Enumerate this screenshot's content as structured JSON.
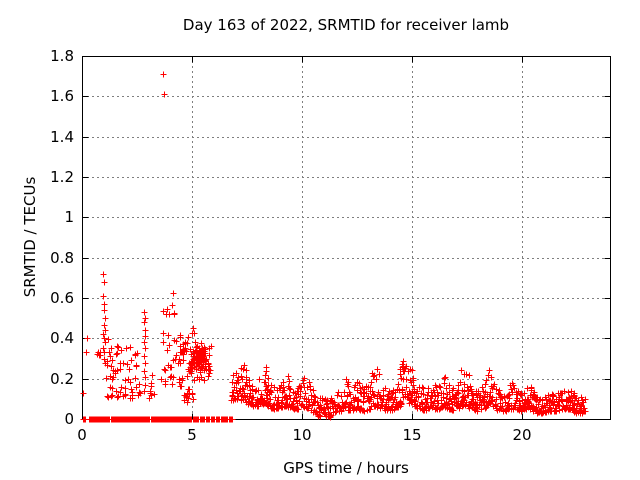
{
  "chart_data": {
    "type": "scatter",
    "title": "Day 163 of 2022, SRMTID for receiver lamb",
    "xlabel": "GPS time / hours",
    "ylabel": "SRMTID / TECUs",
    "xlim": [
      0,
      24
    ],
    "ylim": [
      0,
      1.8
    ],
    "xticks": [
      0,
      5,
      10,
      15,
      20
    ],
    "xtick_labels": [
      "0",
      "5",
      "10",
      "15",
      "20"
    ],
    "yticks": [
      0,
      0.2,
      0.4,
      0.6,
      0.8,
      1,
      1.2,
      1.4,
      1.6,
      1.8
    ],
    "ytick_labels": [
      "0",
      "0.2",
      "0.4",
      "0.6",
      "0.8",
      "1",
      "1.2",
      "1.4",
      "1.6",
      "1.8"
    ],
    "grid": true,
    "legend": "none",
    "marker": "plus",
    "marker_color": "#ff0000",
    "grid_color": "#7f7f7f",
    "border_color": "#000000",
    "outlier_points": [
      [
        3.68,
        1.71
      ],
      [
        3.73,
        1.61
      ]
    ],
    "isolated_points": [
      [
        0.05,
        0.13
      ],
      [
        0.16,
        0.33
      ],
      [
        0.22,
        0.4
      ]
    ],
    "arc_points": [
      [
        0.95,
        0.72
      ],
      [
        1.0,
        0.68
      ],
      [
        0.97,
        0.61
      ],
      [
        1.02,
        0.57
      ],
      [
        0.99,
        0.54
      ],
      [
        1.04,
        0.5
      ],
      [
        0.98,
        0.465
      ],
      [
        1.03,
        0.44
      ],
      [
        0.97,
        0.42
      ],
      [
        1.0,
        0.4
      ],
      [
        1.05,
        0.38
      ],
      [
        0.96,
        0.35
      ],
      [
        1.01,
        0.33
      ],
      [
        0.99,
        0.3
      ],
      [
        1.03,
        0.28
      ],
      [
        2.82,
        0.53
      ],
      [
        2.86,
        0.5
      ],
      [
        2.84,
        0.48
      ],
      [
        2.88,
        0.44
      ],
      [
        2.85,
        0.41
      ],
      [
        2.83,
        0.38
      ],
      [
        2.87,
        0.35
      ],
      [
        2.84,
        0.31
      ],
      [
        2.86,
        0.28
      ],
      [
        2.83,
        0.24
      ],
      [
        2.85,
        0.21
      ],
      [
        2.87,
        0.17
      ],
      [
        2.84,
        0.14
      ]
    ],
    "clusters": [
      {
        "x0": 0.68,
        "x1": 0.82,
        "y0": 0.28,
        "y1": 0.36,
        "n": 5,
        "mode": "uniform"
      },
      {
        "x0": 1.08,
        "x1": 2.02,
        "y0": 0.11,
        "y1": 0.4,
        "n": 42,
        "mode": "low",
        "bias": 1.5
      },
      {
        "x0": 2.05,
        "x1": 2.65,
        "y0": 0.1,
        "y1": 0.36,
        "n": 22,
        "mode": "low",
        "bias": 1.3
      },
      {
        "x0": 3.0,
        "x1": 3.28,
        "y0": 0.08,
        "y1": 0.22,
        "n": 8,
        "mode": "uniform"
      },
      {
        "x0": 3.55,
        "x1": 4.3,
        "y0": 0.17,
        "y1": 0.63,
        "n": 30,
        "mode": "low",
        "bias": 1.6
      },
      {
        "x0": 4.35,
        "x1": 5.62,
        "y0": 0.14,
        "y1": 0.46,
        "n": 95,
        "mode": "center"
      },
      {
        "x0": 5.2,
        "x1": 5.58,
        "y0": 0.24,
        "y1": 0.36,
        "n": 45,
        "mode": "center"
      },
      {
        "x0": 4.55,
        "x1": 5.05,
        "y0": 0.07,
        "y1": 0.16,
        "n": 14,
        "mode": "uniform"
      },
      {
        "x0": 5.62,
        "x1": 5.88,
        "y0": 0.2,
        "y1": 0.38,
        "n": 12,
        "mode": "center"
      }
    ],
    "zero_line_segments": [
      [
        0.02,
        0.16
      ],
      [
        0.3,
        1.24
      ],
      [
        1.33,
        2.04
      ],
      [
        2.1,
        3.08
      ],
      [
        3.16,
        4.14
      ],
      [
        4.2,
        4.98
      ],
      [
        5.05,
        5.28
      ],
      [
        5.36,
        5.54
      ],
      [
        5.62,
        5.78
      ],
      [
        5.86,
        6.0
      ],
      [
        6.08,
        6.22
      ],
      [
        6.3,
        6.44
      ],
      [
        6.52,
        6.62
      ],
      [
        6.7,
        6.84
      ]
    ],
    "zero_line_step": 0.022,
    "band": {
      "x_start": 6.8,
      "x_end": 22.87,
      "step": 0.028,
      "bias": 1.7,
      "envelope": [
        [
          6.8,
          0.09,
          0.22
        ],
        [
          7.1,
          0.09,
          0.24
        ],
        [
          7.35,
          0.1,
          0.28
        ],
        [
          7.6,
          0.07,
          0.18
        ],
        [
          7.9,
          0.06,
          0.15
        ],
        [
          8.15,
          0.07,
          0.26
        ],
        [
          8.3,
          0.08,
          0.3
        ],
        [
          8.5,
          0.06,
          0.2
        ],
        [
          8.8,
          0.05,
          0.15
        ],
        [
          9.1,
          0.06,
          0.18
        ],
        [
          9.35,
          0.06,
          0.23
        ],
        [
          9.6,
          0.05,
          0.15
        ],
        [
          9.9,
          0.05,
          0.17
        ],
        [
          10.15,
          0.06,
          0.22
        ],
        [
          10.45,
          0.04,
          0.15
        ],
        [
          10.75,
          0.015,
          0.1
        ],
        [
          11.0,
          0.02,
          0.12
        ],
        [
          11.25,
          0.01,
          0.09
        ],
        [
          11.5,
          0.03,
          0.13
        ],
        [
          11.75,
          0.04,
          0.16
        ],
        [
          11.95,
          0.05,
          0.22
        ],
        [
          12.2,
          0.04,
          0.15
        ],
        [
          12.5,
          0.05,
          0.19
        ],
        [
          12.8,
          0.04,
          0.15
        ],
        [
          13.1,
          0.05,
          0.2
        ],
        [
          13.35,
          0.06,
          0.3
        ],
        [
          13.6,
          0.05,
          0.17
        ],
        [
          13.9,
          0.04,
          0.15
        ],
        [
          14.2,
          0.05,
          0.17
        ],
        [
          14.45,
          0.06,
          0.22
        ],
        [
          14.62,
          0.1,
          0.45
        ],
        [
          14.7,
          0.12,
          0.55
        ],
        [
          14.8,
          0.08,
          0.33
        ],
        [
          15.0,
          0.07,
          0.26
        ],
        [
          15.25,
          0.05,
          0.17
        ],
        [
          15.55,
          0.04,
          0.15
        ],
        [
          15.9,
          0.05,
          0.16
        ],
        [
          16.2,
          0.05,
          0.19
        ],
        [
          16.5,
          0.06,
          0.21
        ],
        [
          16.8,
          0.04,
          0.15
        ],
        [
          17.1,
          0.05,
          0.18
        ],
        [
          17.4,
          0.07,
          0.33
        ],
        [
          17.65,
          0.05,
          0.19
        ],
        [
          17.95,
          0.04,
          0.14
        ],
        [
          18.25,
          0.05,
          0.17
        ],
        [
          18.5,
          0.06,
          0.26
        ],
        [
          18.75,
          0.05,
          0.17
        ],
        [
          19.0,
          0.04,
          0.14
        ],
        [
          19.3,
          0.04,
          0.14
        ],
        [
          19.55,
          0.05,
          0.2
        ],
        [
          19.8,
          0.04,
          0.14
        ],
        [
          20.1,
          0.04,
          0.15
        ],
        [
          20.35,
          0.05,
          0.18
        ],
        [
          20.65,
          0.03,
          0.12
        ],
        [
          20.95,
          0.03,
          0.11
        ],
        [
          21.3,
          0.04,
          0.13
        ],
        [
          21.6,
          0.04,
          0.14
        ],
        [
          21.9,
          0.05,
          0.15
        ],
        [
          22.15,
          0.05,
          0.16
        ],
        [
          22.45,
          0.03,
          0.12
        ],
        [
          22.7,
          0.03,
          0.11
        ],
        [
          22.87,
          0.04,
          0.1
        ]
      ]
    },
    "seed": 42
  }
}
